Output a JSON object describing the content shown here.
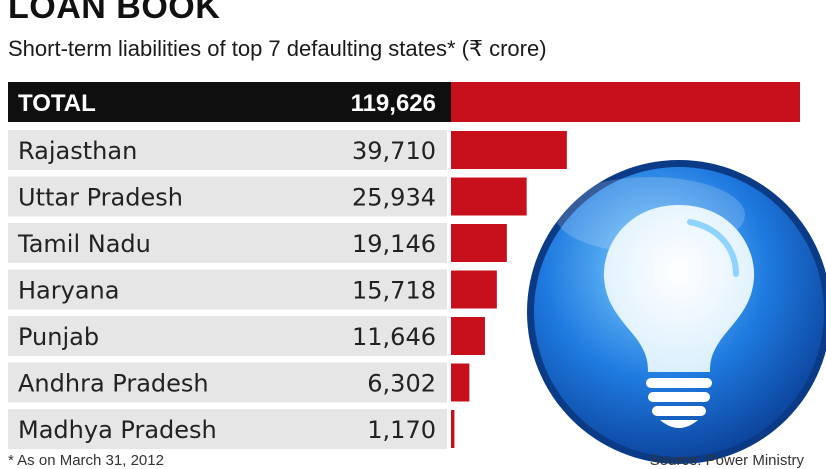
{
  "header": {
    "title": "LOAN BOOK",
    "subtitle": "Short-term liabilities of top 7 defaulting states* (₹ crore)"
  },
  "footer": {
    "footnote": "* As on March 31, 2012",
    "source": "Source: Power Ministry"
  },
  "colors": {
    "bar": "#c8101c",
    "total_band": "#0f0f0f",
    "row_band": "#e6e6e6",
    "bulb_circle": "#1a6fd6"
  },
  "illustration": {
    "icon": "light-bulb-icon"
  },
  "chart_data": {
    "type": "bar",
    "orientation": "horizontal",
    "title": "LOAN BOOK",
    "subtitle": "Short-term liabilities of top 7 defaulting states* (₹ crore)",
    "total": {
      "label": "TOTAL",
      "value": 119626,
      "display": "119,626"
    },
    "categories": [
      "Rajasthan",
      "Uttar Pradesh",
      "Tamil Nadu",
      "Haryana",
      "Punjab",
      "Andhra Pradesh",
      "Madhya Pradesh"
    ],
    "values": [
      39710,
      25934,
      19146,
      15718,
      11646,
      6302,
      1170
    ],
    "value_labels": [
      "39,710",
      "25,934",
      "19,146",
      "15,718",
      "11,646",
      "6,302",
      "1,170"
    ],
    "xlim": [
      0,
      119626
    ],
    "grid": false,
    "legend": "none"
  }
}
